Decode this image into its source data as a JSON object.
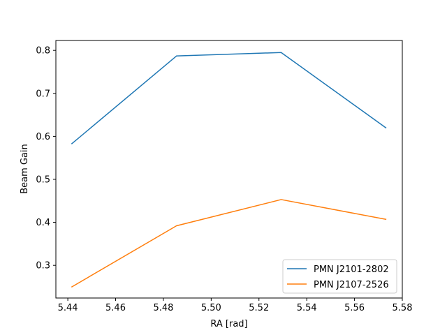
{
  "chart_data": {
    "type": "line",
    "title": "",
    "xlabel": "RA [rad]",
    "ylabel": "Beam Gain",
    "xlim": [
      5.435,
      5.58
    ],
    "ylim": [
      0.224,
      0.823
    ],
    "xticks": [
      5.44,
      5.46,
      5.48,
      5.5,
      5.52,
      5.54,
      5.56,
      5.58
    ],
    "yticks": [
      0.3,
      0.4,
      0.5,
      0.6,
      0.7,
      0.8
    ],
    "xtick_labels": [
      "5.44",
      "5.46",
      "5.48",
      "5.50",
      "5.52",
      "5.54",
      "5.56",
      "5.58"
    ],
    "ytick_labels": [
      "0.3",
      "0.4",
      "0.5",
      "0.6",
      "0.7",
      "0.8"
    ],
    "grid": false,
    "legend_position": "lower-right",
    "x": [
      5.4417,
      5.4855,
      5.5293,
      5.5731
    ],
    "series": [
      {
        "name": "PMN J2101-2802",
        "color": "#1f77b4",
        "values": [
          0.583,
          0.787,
          0.795,
          0.62
        ]
      },
      {
        "name": "PMN J2107-2526",
        "color": "#ff7f0e",
        "values": [
          0.25,
          0.392,
          0.453,
          0.407
        ]
      }
    ]
  }
}
